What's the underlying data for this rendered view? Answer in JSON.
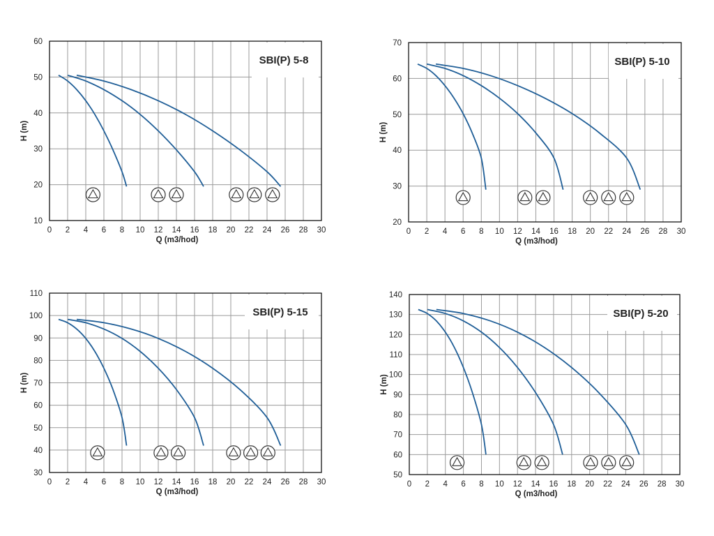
{
  "colors": {
    "curve": "#1f5e97",
    "grid": "#9a9a9a",
    "frame": "#000000",
    "text": "#222222"
  },
  "chart_data": [
    {
      "type": "line",
      "title": "SBI(P) 5-8",
      "xlabel": "Q (m3/hod)",
      "ylabel": "H (m)",
      "xlim": [
        0,
        30
      ],
      "ylim": [
        10,
        60
      ],
      "x_ticks": [
        "0",
        "2",
        "4",
        "6",
        "8",
        "10",
        "12",
        "14",
        "16",
        "18",
        "20",
        "22",
        "24",
        "26",
        "28",
        "30"
      ],
      "y_ticks": [
        "10",
        "20",
        "30",
        "40",
        "50",
        "60"
      ],
      "grid": true,
      "series": [
        {
          "pumps": 1,
          "x": [
            1,
            2,
            3,
            4,
            5,
            6,
            7,
            8,
            8.5
          ],
          "y": [
            50.5,
            48.9,
            46.5,
            43.4,
            39.6,
            35.0,
            29.7,
            23.6,
            19.5
          ]
        },
        {
          "pumps": 2,
          "x": [
            2,
            4,
            6,
            8,
            10,
            12,
            14,
            16,
            17
          ],
          "y": [
            50.5,
            48.9,
            46.5,
            43.4,
            39.6,
            35.0,
            29.7,
            23.6,
            19.5
          ]
        },
        {
          "pumps": 3,
          "x": [
            3,
            6,
            9,
            12,
            15,
            18,
            21,
            24,
            25.5
          ],
          "y": [
            50.5,
            48.9,
            46.5,
            43.4,
            39.6,
            35.0,
            29.7,
            23.6,
            19.5
          ]
        }
      ],
      "pump_markers": [
        {
          "x": 4.8,
          "y": 17.2
        },
        {
          "x": 12.0,
          "y": 17.2
        },
        {
          "x": 14.0,
          "y": 17.2
        },
        {
          "x": 20.6,
          "y": 17.2
        },
        {
          "x": 22.6,
          "y": 17.2
        },
        {
          "x": 24.6,
          "y": 17.2
        }
      ]
    },
    {
      "type": "line",
      "title": "SBI(P) 5-10",
      "xlabel": "Q (m3/hod)",
      "ylabel": "H (m)",
      "xlim": [
        0,
        30
      ],
      "ylim": [
        20,
        70
      ],
      "x_ticks": [
        "0",
        "2",
        "4",
        "6",
        "8",
        "10",
        "12",
        "14",
        "16",
        "18",
        "20",
        "22",
        "24",
        "26",
        "28",
        "30"
      ],
      "y_ticks": [
        "20",
        "30",
        "40",
        "50",
        "60",
        "70"
      ],
      "grid": true,
      "series": [
        {
          "pumps": 1,
          "x": [
            1,
            2,
            3,
            4,
            5,
            6,
            7,
            8,
            8.5
          ],
          "y": [
            64,
            62.8,
            60.8,
            58.0,
            54.5,
            50.2,
            44.8,
            37.8,
            29
          ]
        },
        {
          "pumps": 2,
          "x": [
            2,
            4,
            6,
            8,
            10,
            12,
            14,
            16,
            17
          ],
          "y": [
            64,
            62.8,
            60.8,
            58.0,
            54.5,
            50.2,
            44.8,
            37.8,
            29
          ]
        },
        {
          "pumps": 3,
          "x": [
            3,
            6,
            9,
            12,
            15,
            18,
            21,
            24,
            25.5
          ],
          "y": [
            64,
            62.8,
            60.8,
            58.0,
            54.5,
            50.2,
            44.8,
            37.8,
            29
          ]
        }
      ],
      "pump_markers": [
        {
          "x": 6.0,
          "y": 26.8
        },
        {
          "x": 12.8,
          "y": 26.8
        },
        {
          "x": 14.8,
          "y": 26.8
        },
        {
          "x": 20.0,
          "y": 26.8
        },
        {
          "x": 22.0,
          "y": 26.8
        },
        {
          "x": 24.0,
          "y": 26.8
        }
      ]
    },
    {
      "type": "line",
      "title": "SBI(P) 5-15",
      "xlabel": "Q (m3/hod)",
      "ylabel": "H (m)",
      "xlim": [
        0,
        30
      ],
      "ylim": [
        30,
        110
      ],
      "x_ticks": [
        "0",
        "2",
        "4",
        "6",
        "8",
        "10",
        "12",
        "14",
        "16",
        "18",
        "20",
        "22",
        "24",
        "26",
        "28",
        "30"
      ],
      "y_ticks": [
        "30",
        "40",
        "50",
        "60",
        "70",
        "80",
        "90",
        "100",
        "110"
      ],
      "grid": true,
      "series": [
        {
          "pumps": 1,
          "x": [
            1,
            2,
            3,
            4,
            5,
            6,
            7,
            8,
            8.5
          ],
          "y": [
            98.3,
            96.8,
            94.0,
            89.8,
            84.0,
            76.5,
            67.0,
            54.5,
            42
          ]
        },
        {
          "pumps": 2,
          "x": [
            2,
            4,
            6,
            8,
            10,
            12,
            14,
            16,
            17
          ],
          "y": [
            98.3,
            96.8,
            94.0,
            89.8,
            84.0,
            76.5,
            67.0,
            54.5,
            42
          ]
        },
        {
          "pumps": 3,
          "x": [
            3,
            6,
            9,
            12,
            15,
            18,
            21,
            24,
            25.5
          ],
          "y": [
            98.3,
            96.8,
            94.0,
            89.8,
            84.0,
            76.5,
            67.0,
            54.5,
            42
          ]
        }
      ],
      "pump_markers": [
        {
          "x": 5.3,
          "y": 38.8
        },
        {
          "x": 12.3,
          "y": 38.8
        },
        {
          "x": 14.2,
          "y": 38.8
        },
        {
          "x": 20.3,
          "y": 38.8
        },
        {
          "x": 22.2,
          "y": 38.8
        },
        {
          "x": 24.1,
          "y": 38.8
        }
      ]
    },
    {
      "type": "line",
      "title": "SBI(P) 5-20",
      "xlabel": "Q (m3/hod)",
      "ylabel": "H (m)",
      "xlim": [
        0,
        30
      ],
      "ylim": [
        50,
        140
      ],
      "x_ticks": [
        "0",
        "2",
        "4",
        "6",
        "8",
        "10",
        "12",
        "14",
        "16",
        "18",
        "20",
        "22",
        "24",
        "26",
        "28",
        "30"
      ],
      "y_ticks": [
        "50",
        "60",
        "70",
        "80",
        "90",
        "100",
        "110",
        "120",
        "130",
        "140"
      ],
      "grid": true,
      "series": [
        {
          "pumps": 1,
          "x": [
            1,
            2,
            3,
            4,
            5,
            6,
            7,
            8,
            8.5
          ],
          "y": [
            132.5,
            130.5,
            126.8,
            121.2,
            113.5,
            103.5,
            91.0,
            75.0,
            60
          ]
        },
        {
          "pumps": 2,
          "x": [
            2,
            4,
            6,
            8,
            10,
            12,
            14,
            16,
            17
          ],
          "y": [
            132.5,
            130.5,
            126.8,
            121.2,
            113.5,
            103.5,
            91.0,
            75.0,
            60
          ]
        },
        {
          "pumps": 3,
          "x": [
            3,
            6,
            9,
            12,
            15,
            18,
            21,
            24,
            25.5
          ],
          "y": [
            132.5,
            130.5,
            126.8,
            121.2,
            113.5,
            103.5,
            91.0,
            75.0,
            60
          ]
        }
      ],
      "pump_markers": [
        {
          "x": 5.3,
          "y": 56
        },
        {
          "x": 12.7,
          "y": 56
        },
        {
          "x": 14.7,
          "y": 56
        },
        {
          "x": 20.1,
          "y": 56
        },
        {
          "x": 22.1,
          "y": 56
        },
        {
          "x": 24.1,
          "y": 56
        }
      ]
    }
  ]
}
